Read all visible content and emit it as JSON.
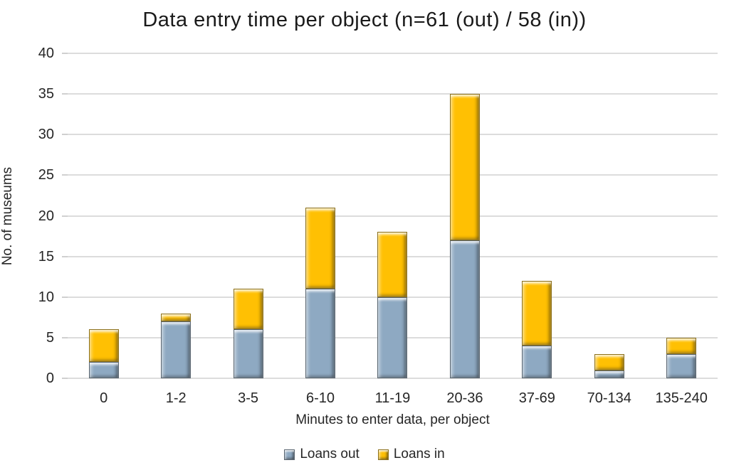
{
  "chart_data": {
    "type": "bar",
    "stacked": true,
    "title": "Data entry time per object (n=61 (out) / 58 (in))",
    "categories": [
      "0",
      "1-2",
      "3-5",
      "6-10",
      "11-19",
      "20-36",
      "37-69",
      "70-134",
      "135-240"
    ],
    "series": [
      {
        "name": "Loans out",
        "color": "#8EA9C2",
        "values": [
          2,
          7,
          6,
          11,
          10,
          17,
          4,
          1,
          3
        ]
      },
      {
        "name": "Loans in",
        "color": "#FFC003",
        "values": [
          4,
          1,
          5,
          10,
          8,
          18,
          8,
          2,
          2
        ]
      }
    ],
    "totals": [
      6,
      8,
      11,
      21,
      18,
      35,
      12,
      3,
      5
    ],
    "xlabel": "Minutes to enter data, per object",
    "ylabel": "No. of museums",
    "ylim": [
      0,
      40
    ],
    "yticks": [
      0,
      5,
      10,
      15,
      20,
      25,
      30,
      35,
      40
    ],
    "grid": true,
    "legend_position": "bottom",
    "colors": {
      "gridline": "#DCDCDC",
      "text": "#262626",
      "background": "#FFFFFF"
    }
  }
}
